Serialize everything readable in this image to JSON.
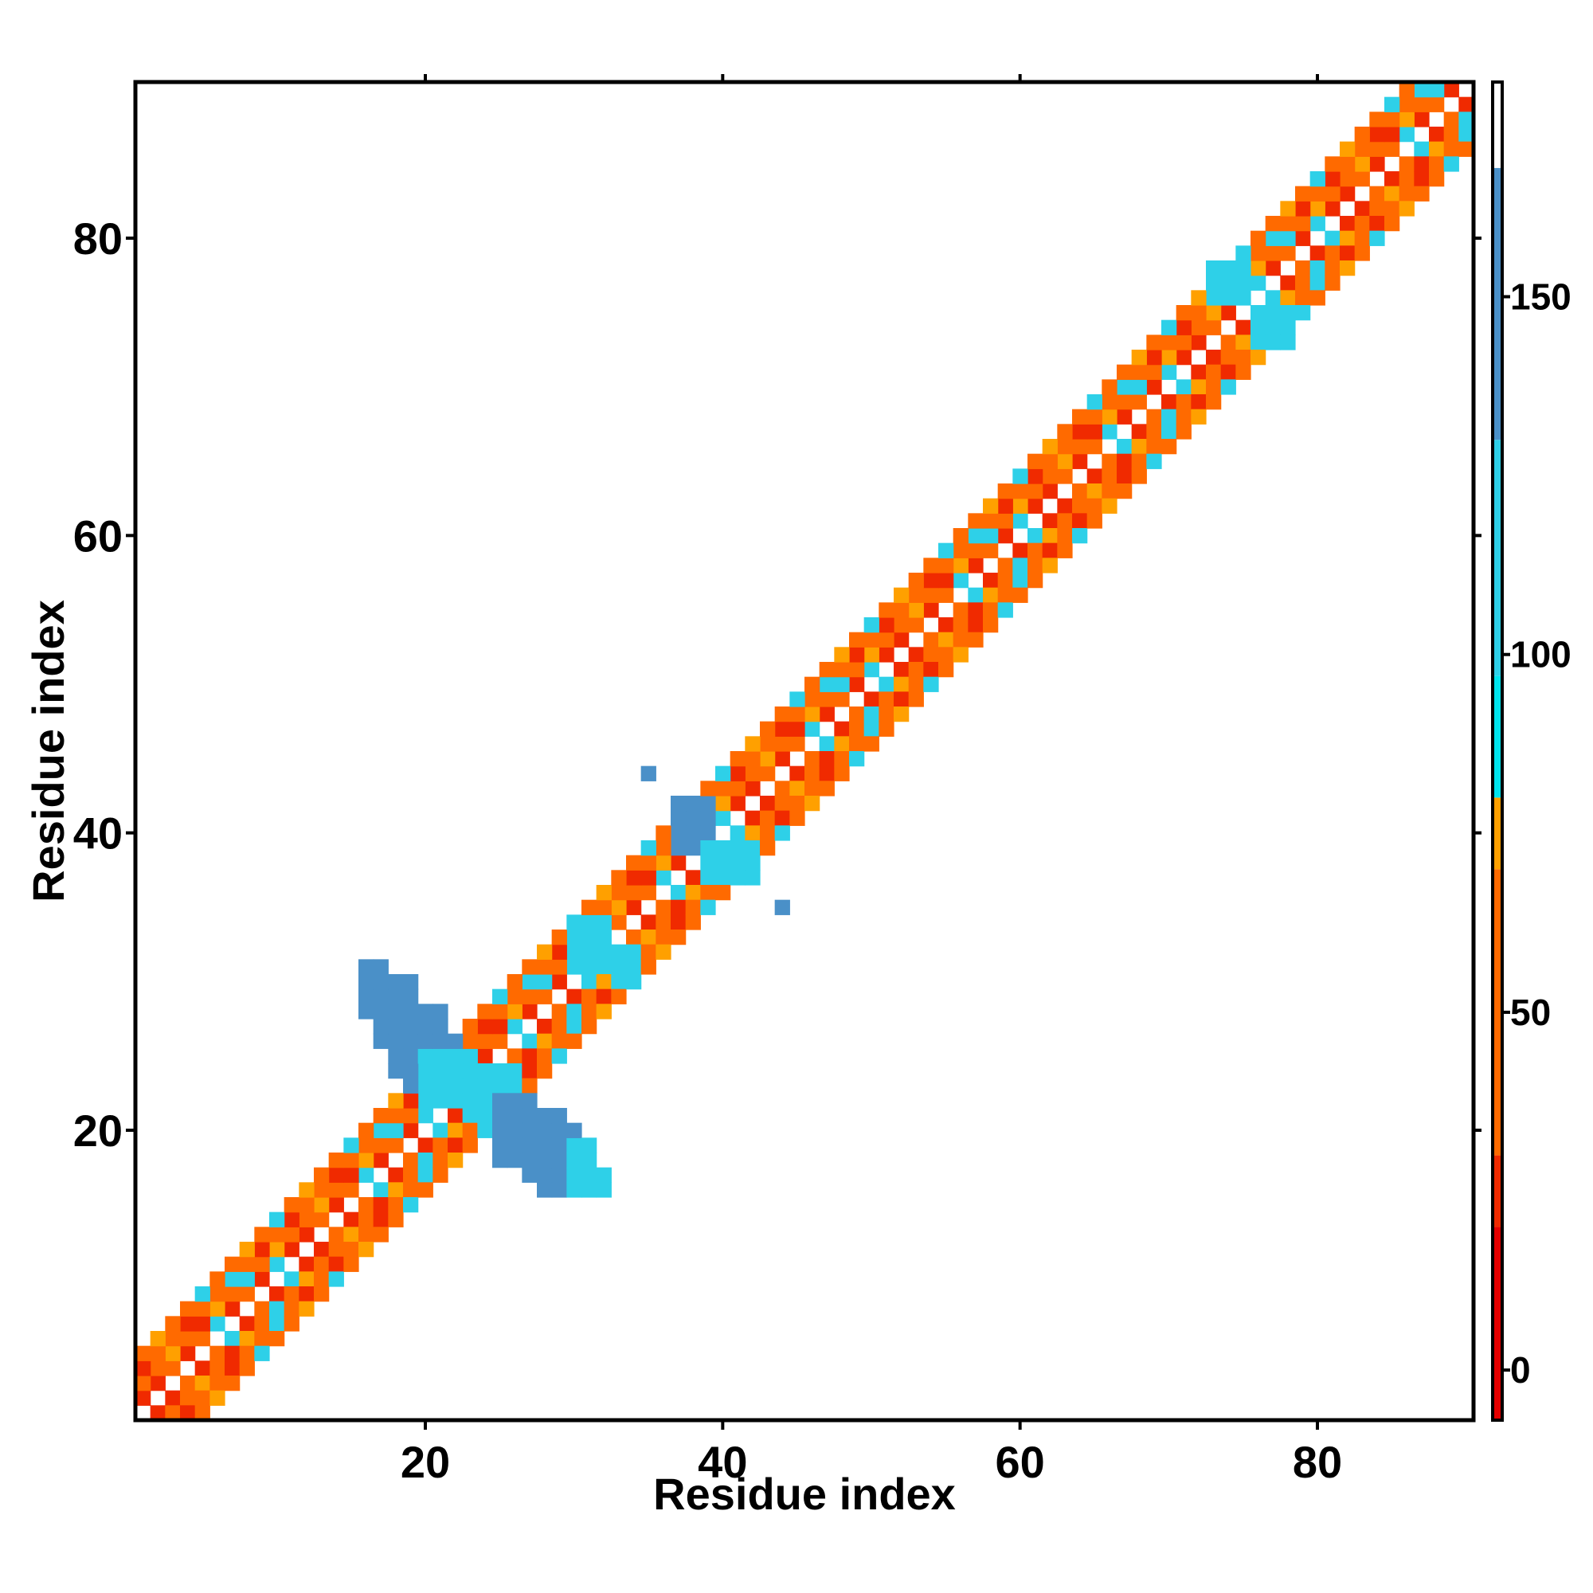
{
  "chart_data": {
    "type": "heatmap",
    "title": "",
    "xlabel": "Residue index",
    "ylabel": "Residue index",
    "xlim": [
      0.5,
      90.5
    ],
    "ylim": [
      0.5,
      90.5
    ],
    "x_ticks": [
      20,
      40,
      60,
      80
    ],
    "y_ticks": [
      20,
      40,
      60,
      80
    ],
    "n_residues": 90,
    "colorbar": {
      "ticks": [
        0,
        50,
        100,
        150
      ],
      "range": [
        -7,
        180
      ],
      "segments": [
        {
          "from": -7,
          "to": 20,
          "color": "#e60000"
        },
        {
          "from": 20,
          "to": 30,
          "color": "#f02a00"
        },
        {
          "from": 30,
          "to": 70,
          "color": "#ff6a00"
        },
        {
          "from": 70,
          "to": 80,
          "color": "#ffa000"
        },
        {
          "from": 80,
          "to": 97,
          "color": "#00e5ee"
        },
        {
          "from": 97,
          "to": 130,
          "color": "#2ed0e8"
        },
        {
          "from": 130,
          "to": 168,
          "color": "#4a90c8"
        },
        {
          "from": 168,
          "to": 180,
          "color": "#ffffff"
        }
      ]
    },
    "diagonal_band": {
      "offsets": [
        {
          "d": 1,
          "pattern": [
            20,
            28,
            60,
            28,
            60,
            120,
            28,
            60,
            28,
            120
          ]
        },
        {
          "d": 2,
          "pattern": [
            60,
            60,
            75,
            60,
            28,
            75,
            60,
            100,
            60,
            75
          ]
        },
        {
          "d": 3,
          "pattern": [
            28,
            60,
            60,
            28,
            60,
            60,
            100,
            60,
            28,
            60
          ]
        },
        {
          "d": 4,
          "pattern": [
            60,
            75,
            60,
            60,
            110,
            60,
            60,
            75,
            60,
            110
          ]
        }
      ],
      "notes": "values along |i-j| = d, patterns repeat along the diagonal"
    },
    "blocks": [
      {
        "x": [
          16,
          17
        ],
        "y": [
          28,
          31
        ],
        "value": 140
      },
      {
        "x": [
          17,
          19
        ],
        "y": [
          26,
          30
        ],
        "value": 150
      },
      {
        "x": [
          18,
          21
        ],
        "y": [
          24,
          28
        ],
        "value": 150
      },
      {
        "x": [
          19,
          22
        ],
        "y": [
          23,
          26
        ],
        "value": 150
      },
      {
        "x": [
          20,
          23
        ],
        "y": [
          22,
          25
        ],
        "value": 110
      },
      {
        "x": [
          23,
          26
        ],
        "y": [
          21,
          24
        ],
        "value": 110
      },
      {
        "x": [
          25,
          27
        ],
        "y": [
          18,
          22
        ],
        "value": 150
      },
      {
        "x": [
          27,
          29
        ],
        "y": [
          17,
          21
        ],
        "value": 150
      },
      {
        "x": [
          28,
          30
        ],
        "y": [
          16,
          20
        ],
        "value": 150
      },
      {
        "x": [
          30,
          31
        ],
        "y": [
          16,
          19
        ],
        "value": 110
      },
      {
        "x": [
          31,
          32
        ],
        "y": [
          16,
          17
        ],
        "value": 110
      },
      {
        "x": [
          30,
          32
        ],
        "y": [
          31,
          34
        ],
        "value": 110
      },
      {
        "x": [
          33,
          34
        ],
        "y": [
          30,
          32
        ],
        "value": 110
      },
      {
        "x": [
          37,
          39
        ],
        "y": [
          39,
          42
        ],
        "value": 150
      },
      {
        "x": [
          39,
          42
        ],
        "y": [
          37,
          39
        ],
        "value": 110
      },
      {
        "x": [
          73,
          75
        ],
        "y": [
          76,
          78
        ],
        "value": 110
      },
      {
        "x": [
          76,
          78
        ],
        "y": [
          73,
          75
        ],
        "value": 110
      },
      {
        "x": [
          35,
          35
        ],
        "y": [
          44,
          44
        ],
        "value": 150
      },
      {
        "x": [
          44,
          44
        ],
        "y": [
          35,
          35
        ],
        "value": 150
      }
    ]
  }
}
